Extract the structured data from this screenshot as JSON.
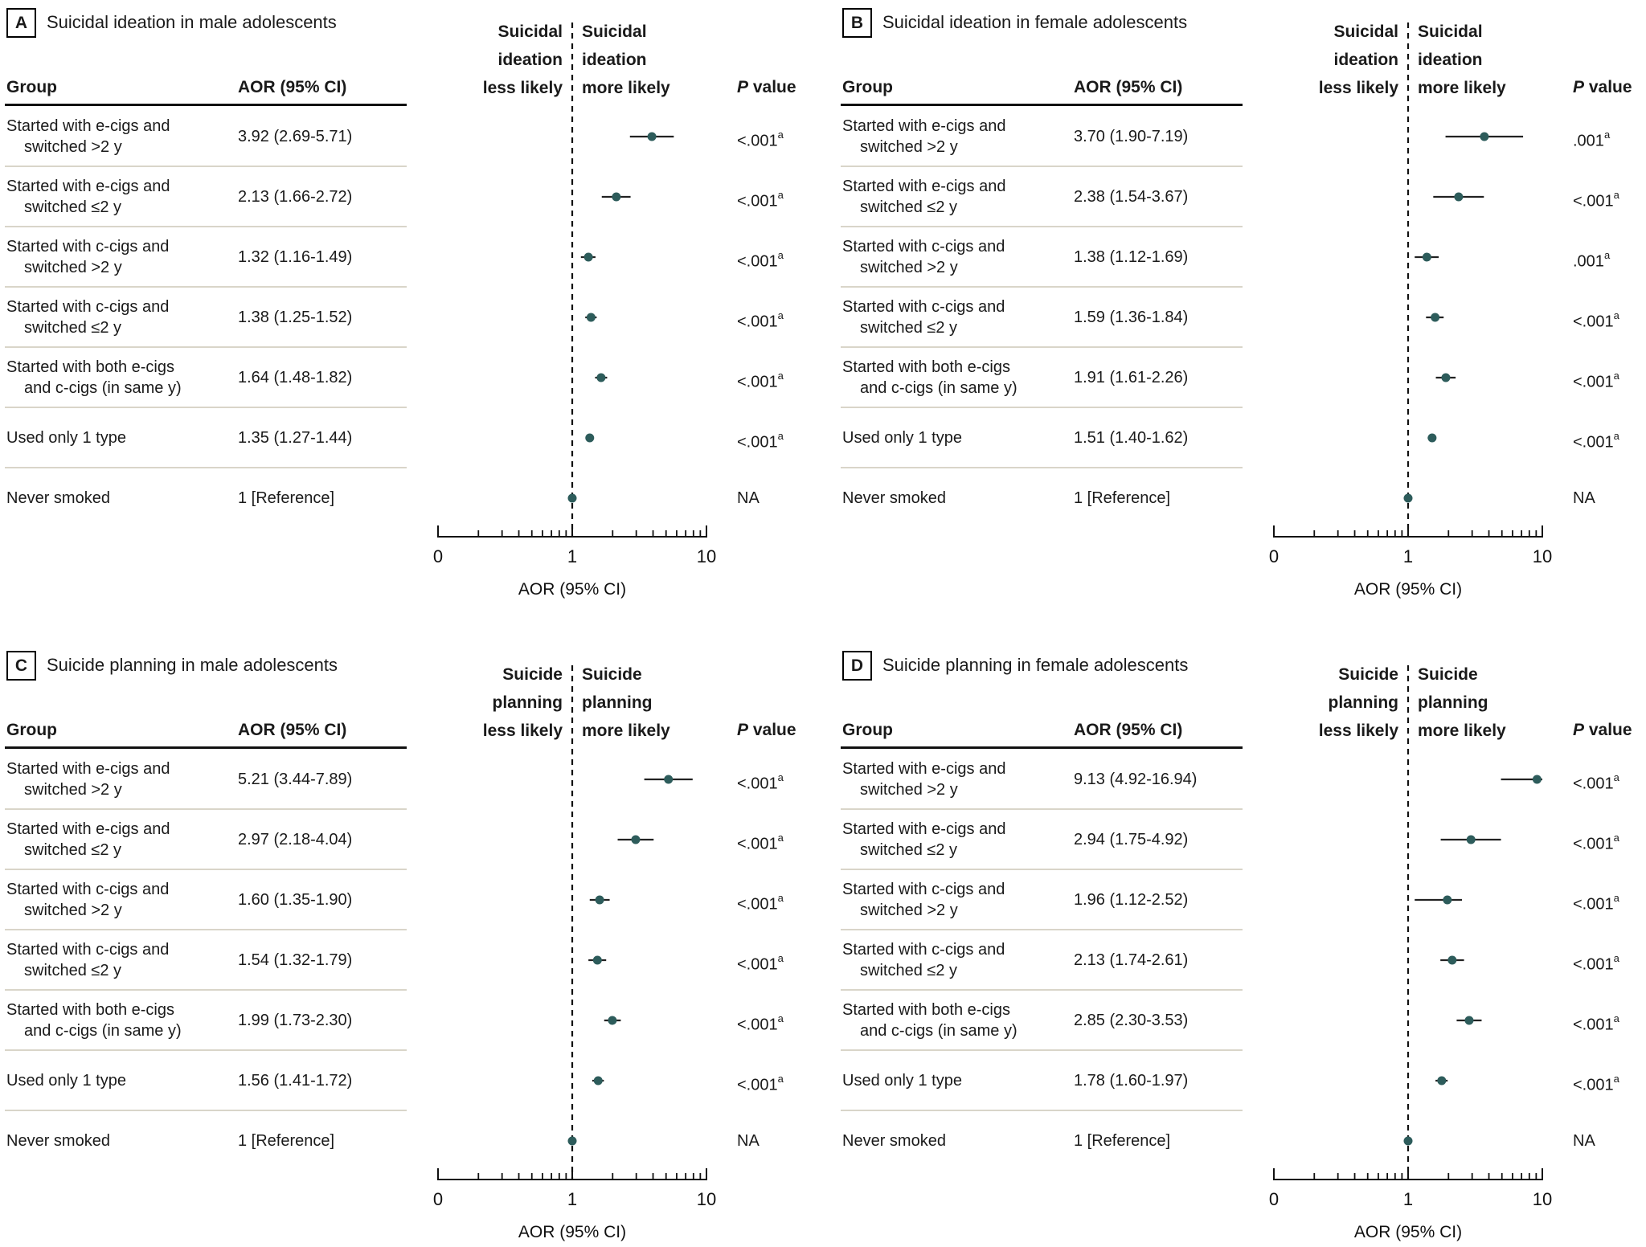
{
  "figure": {
    "col_group": "Group",
    "col_aor": "AOR (95% CI)",
    "p_header_italic": "P",
    "p_header_rest": " value",
    "marker_color": "#2d5c5b",
    "ci_color": "#222222",
    "axis_color": "#111111",
    "separator_color": "#d9d5c9"
  },
  "chart_data": [
    {
      "type": "scatter",
      "panel": "A",
      "title": "Suicidal ideation in male adolescents",
      "xlabel": "AOR (95% CI)",
      "xscale": "log",
      "xlim": [
        0.1,
        10
      ],
      "x_tick_labels": [
        "0",
        "1",
        "10"
      ],
      "direction_left": [
        "Suicidal",
        "ideation",
        "less likely"
      ],
      "direction_right": [
        "Suicidal",
        "ideation",
        "more likely"
      ],
      "rows": [
        {
          "group": [
            "Started with e-cigs and",
            "switched >2 y"
          ],
          "aor_text": "3.92 (2.69-5.71)",
          "est": 3.92,
          "lo": 2.69,
          "hi": 5.71,
          "p": "<.001",
          "p_sup": "a"
        },
        {
          "group": [
            "Started with e-cigs and",
            "switched ≤2 y"
          ],
          "aor_text": "2.13 (1.66-2.72)",
          "est": 2.13,
          "lo": 1.66,
          "hi": 2.72,
          "p": "<.001",
          "p_sup": "a"
        },
        {
          "group": [
            "Started with c-cigs and",
            "switched >2 y"
          ],
          "aor_text": "1.32 (1.16-1.49)",
          "est": 1.32,
          "lo": 1.16,
          "hi": 1.49,
          "p": "<.001",
          "p_sup": "a"
        },
        {
          "group": [
            "Started with c-cigs and",
            "switched ≤2 y"
          ],
          "aor_text": "1.38 (1.25-1.52)",
          "est": 1.38,
          "lo": 1.25,
          "hi": 1.52,
          "p": "<.001",
          "p_sup": "a"
        },
        {
          "group": [
            "Started with both e-cigs",
            "and c-cigs (in same y)"
          ],
          "aor_text": "1.64 (1.48-1.82)",
          "est": 1.64,
          "lo": 1.48,
          "hi": 1.82,
          "p": "<.001",
          "p_sup": "a"
        },
        {
          "group": [
            "Used only 1 type"
          ],
          "aor_text": "1.35 (1.27-1.44)",
          "est": 1.35,
          "lo": 1.27,
          "hi": 1.44,
          "p": "<.001",
          "p_sup": "a"
        },
        {
          "group": [
            "Never smoked"
          ],
          "aor_text": "1 [Reference]",
          "est": 1,
          "lo": 1,
          "hi": 1,
          "p": "NA",
          "p_sup": ""
        }
      ]
    },
    {
      "type": "scatter",
      "panel": "B",
      "title": "Suicidal ideation in female adolescents",
      "xlabel": "AOR (95% CI)",
      "xscale": "log",
      "xlim": [
        0.1,
        10
      ],
      "x_tick_labels": [
        "0",
        "1",
        "10"
      ],
      "direction_left": [
        "Suicidal",
        "ideation",
        "less likely"
      ],
      "direction_right": [
        "Suicidal",
        "ideation",
        "more likely"
      ],
      "rows": [
        {
          "group": [
            "Started with e-cigs and",
            "switched >2 y"
          ],
          "aor_text": "3.70 (1.90-7.19)",
          "est": 3.7,
          "lo": 1.9,
          "hi": 7.19,
          "p": ".001",
          "p_sup": "a"
        },
        {
          "group": [
            "Started with e-cigs and",
            "switched ≤2 y"
          ],
          "aor_text": "2.38 (1.54-3.67)",
          "est": 2.38,
          "lo": 1.54,
          "hi": 3.67,
          "p": "<.001",
          "p_sup": "a"
        },
        {
          "group": [
            "Started with c-cigs and",
            "switched >2 y"
          ],
          "aor_text": "1.38 (1.12-1.69)",
          "est": 1.38,
          "lo": 1.12,
          "hi": 1.69,
          "p": ".001",
          "p_sup": "a"
        },
        {
          "group": [
            "Started with c-cigs and",
            "switched ≤2 y"
          ],
          "aor_text": "1.59 (1.36-1.84)",
          "est": 1.59,
          "lo": 1.36,
          "hi": 1.84,
          "p": "<.001",
          "p_sup": "a"
        },
        {
          "group": [
            "Started with both e-cigs",
            "and c-cigs (in same y)"
          ],
          "aor_text": "1.91 (1.61-2.26)",
          "est": 1.91,
          "lo": 1.61,
          "hi": 2.26,
          "p": "<.001",
          "p_sup": "a"
        },
        {
          "group": [
            "Used only 1 type"
          ],
          "aor_text": "1.51 (1.40-1.62)",
          "est": 1.51,
          "lo": 1.4,
          "hi": 1.62,
          "p": "<.001",
          "p_sup": "a"
        },
        {
          "group": [
            "Never smoked"
          ],
          "aor_text": "1 [Reference]",
          "est": 1,
          "lo": 1,
          "hi": 1,
          "p": "NA",
          "p_sup": ""
        }
      ]
    },
    {
      "type": "scatter",
      "panel": "C",
      "title": "Suicide planning in male adolescents",
      "xlabel": "AOR (95% CI)",
      "xscale": "log",
      "xlim": [
        0.1,
        10
      ],
      "x_tick_labels": [
        "0",
        "1",
        "10"
      ],
      "direction_left": [
        "Suicide",
        "planning",
        "less likely"
      ],
      "direction_right": [
        "Suicide",
        "planning",
        "more likely"
      ],
      "rows": [
        {
          "group": [
            "Started with e-cigs and",
            "switched >2 y"
          ],
          "aor_text": "5.21 (3.44-7.89)",
          "est": 5.21,
          "lo": 3.44,
          "hi": 7.89,
          "p": "<.001",
          "p_sup": "a"
        },
        {
          "group": [
            "Started with e-cigs and",
            "switched ≤2 y"
          ],
          "aor_text": "2.97 (2.18-4.04)",
          "est": 2.97,
          "lo": 2.18,
          "hi": 4.04,
          "p": "<.001",
          "p_sup": "a"
        },
        {
          "group": [
            "Started with c-cigs and",
            "switched >2 y"
          ],
          "aor_text": "1.60 (1.35-1.90)",
          "est": 1.6,
          "lo": 1.35,
          "hi": 1.9,
          "p": "<.001",
          "p_sup": "a"
        },
        {
          "group": [
            "Started with c-cigs and",
            "switched ≤2 y"
          ],
          "aor_text": "1.54 (1.32-1.79)",
          "est": 1.54,
          "lo": 1.32,
          "hi": 1.79,
          "p": "<.001",
          "p_sup": "a"
        },
        {
          "group": [
            "Started with both e-cigs",
            "and c-cigs (in same y)"
          ],
          "aor_text": "1.99 (1.73-2.30)",
          "est": 1.99,
          "lo": 1.73,
          "hi": 2.3,
          "p": "<.001",
          "p_sup": "a"
        },
        {
          "group": [
            "Used only 1 type"
          ],
          "aor_text": "1.56 (1.41-1.72)",
          "est": 1.56,
          "lo": 1.41,
          "hi": 1.72,
          "p": "<.001",
          "p_sup": "a"
        },
        {
          "group": [
            "Never smoked"
          ],
          "aor_text": "1 [Reference]",
          "est": 1,
          "lo": 1,
          "hi": 1,
          "p": "NA",
          "p_sup": ""
        }
      ]
    },
    {
      "type": "scatter",
      "panel": "D",
      "title": "Suicide planning in female adolescents",
      "xlabel": "AOR (95% CI)",
      "xscale": "log",
      "xlim": [
        0.1,
        10
      ],
      "x_tick_labels": [
        "0",
        "1",
        "10"
      ],
      "direction_left": [
        "Suicide",
        "planning",
        "less likely"
      ],
      "direction_right": [
        "Suicide",
        "planning",
        "more likely"
      ],
      "rows": [
        {
          "group": [
            "Started with e-cigs and",
            "switched >2 y"
          ],
          "aor_text": "9.13 (4.92-16.94)",
          "est": 9.13,
          "lo": 4.92,
          "hi": 16.94,
          "p": "<.001",
          "p_sup": "a"
        },
        {
          "group": [
            "Started with e-cigs and",
            "switched ≤2 y"
          ],
          "aor_text": "2.94 (1.75-4.92)",
          "est": 2.94,
          "lo": 1.75,
          "hi": 4.92,
          "p": "<.001",
          "p_sup": "a"
        },
        {
          "group": [
            "Started with c-cigs and",
            "switched >2 y"
          ],
          "aor_text": "1.96 (1.12-2.52)",
          "est": 1.96,
          "lo": 1.12,
          "hi": 2.52,
          "p": "<.001",
          "p_sup": "a"
        },
        {
          "group": [
            "Started with c-cigs and",
            "switched ≤2 y"
          ],
          "aor_text": "2.13 (1.74-2.61)",
          "est": 2.13,
          "lo": 1.74,
          "hi": 2.61,
          "p": "<.001",
          "p_sup": "a"
        },
        {
          "group": [
            "Started with both e-cigs",
            "and c-cigs (in same y)"
          ],
          "aor_text": "2.85 (2.30-3.53)",
          "est": 2.85,
          "lo": 2.3,
          "hi": 3.53,
          "p": "<.001",
          "p_sup": "a"
        },
        {
          "group": [
            "Used only 1 type"
          ],
          "aor_text": "1.78 (1.60-1.97)",
          "est": 1.78,
          "lo": 1.6,
          "hi": 1.97,
          "p": "<.001",
          "p_sup": "a"
        },
        {
          "group": [
            "Never smoked"
          ],
          "aor_text": "1 [Reference]",
          "est": 1,
          "lo": 1,
          "hi": 1,
          "p": "NA",
          "p_sup": ""
        }
      ]
    }
  ]
}
